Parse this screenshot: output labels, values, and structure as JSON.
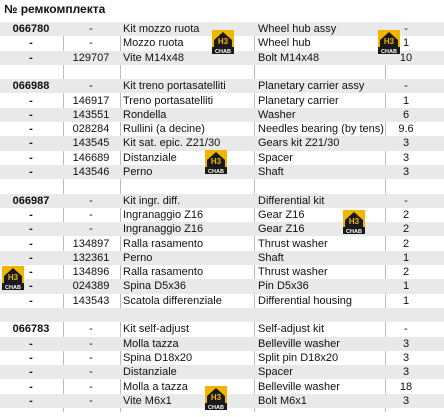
{
  "header": {
    "title": "№ ремкомплекта"
  },
  "badge": {
    "label": "H3",
    "caption": "CHAB"
  },
  "table": {
    "rows": [
      [
        "066780",
        "-",
        "Kit mozzo ruota",
        "Wheel hub assy",
        "-"
      ],
      [
        "-",
        "-",
        "Mozzo ruota",
        "Wheel hub",
        "1"
      ],
      [
        "-",
        "129707",
        "Vite M14x48",
        "Bolt M14x48",
        "10"
      ],
      [],
      [
        "066988",
        "-",
        "Kit treno portasatelliti",
        "Planetary carrier assy",
        "-"
      ],
      [
        "-",
        "146917",
        "Treno portasatelliti",
        "Planetary carrier",
        "1"
      ],
      [
        "-",
        "143551",
        "Rondella",
        "Washer",
        "6"
      ],
      [
        "-",
        "028284",
        "Rullini (a decine)",
        "Needles bearing (by tens)",
        "9.6"
      ],
      [
        "-",
        "143545",
        "Kit sat. epic. Z21/30",
        "Gears kit Z21/30",
        "3"
      ],
      [
        "-",
        "146689",
        "Distanziale",
        "Spacer",
        "3"
      ],
      [
        "-",
        "143546",
        "Perno",
        "Shaft",
        "3"
      ],
      [],
      [
        "066987",
        "-",
        "Kit ingr. diff.",
        "Differential kit",
        "-"
      ],
      [
        "-",
        "-",
        "Ingranaggio Z16",
        "Gear Z16",
        "2"
      ],
      [
        "-",
        "-",
        "Ingranaggio Z16",
        "Gear Z16",
        "2"
      ],
      [
        "-",
        "134897",
        "Ralla rasamento",
        "Thrust washer",
        "2"
      ],
      [
        "-",
        "132361",
        "Perno",
        "Shaft",
        "1"
      ],
      [
        "-",
        "134896",
        "Ralla rasamento",
        "Thrust washer",
        "2"
      ],
      [
        "-",
        "024389",
        "Spina D5x36",
        "Pin D5x36",
        "1"
      ],
      [
        "-",
        "143543",
        "Scatola differenziale",
        "Differential housing",
        "1"
      ],
      [],
      [
        "066783",
        "-",
        "Kit self-adjust",
        "Self-adjust kit",
        "-"
      ],
      [
        "-",
        "-",
        "Molla tazza",
        "Belleville washer",
        "3"
      ],
      [
        "-",
        "-",
        "Spina D18x20",
        "Split pin D18x20",
        "3"
      ],
      [
        "-",
        "-",
        "Distanziale",
        "Spacer",
        "3"
      ],
      [
        "-",
        "-",
        "Molla a tazza",
        "Belleville washer",
        "18"
      ],
      [
        "-",
        "-",
        "Vite M6x1",
        "Bolt M6x1",
        "3"
      ]
    ]
  }
}
